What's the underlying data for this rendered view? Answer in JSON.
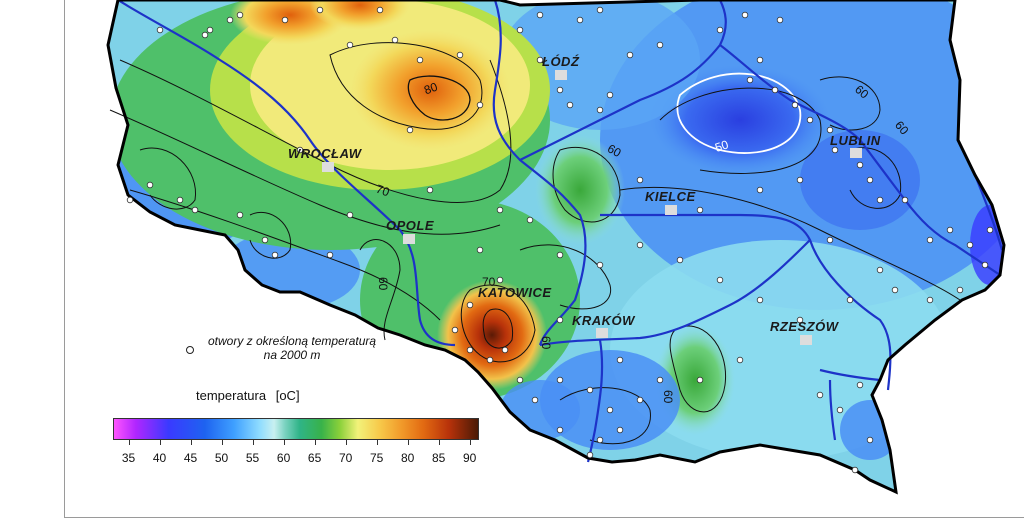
{
  "map": {
    "cities": [
      "ŁÓDŹ",
      "WROCŁAW",
      "OPOLE",
      "KIELCE",
      "KATOWICE",
      "KRAKÓW",
      "RZESZÓW",
      "LUBLIN"
    ],
    "contour_labels": [
      "80",
      "70",
      "60",
      "50",
      "60",
      "70",
      "60",
      "60",
      "60",
      "60"
    ]
  },
  "legend": {
    "boreholes_label_line1": "otwory z określoną temperaturą",
    "boreholes_label_line2": "na 2000 m",
    "title": "temperatura",
    "unit": "[oC]",
    "scale_ticks": [
      "35",
      "40",
      "45",
      "50",
      "55",
      "60",
      "65",
      "70",
      "75",
      "80",
      "85",
      "90"
    ],
    "scale_min": 32.5,
    "scale_max": 91.5
  },
  "colors": {
    "river": "#1d33c8",
    "border": "#000000",
    "low_temp": "#3a3aff",
    "high_temp": "#b8320a"
  }
}
